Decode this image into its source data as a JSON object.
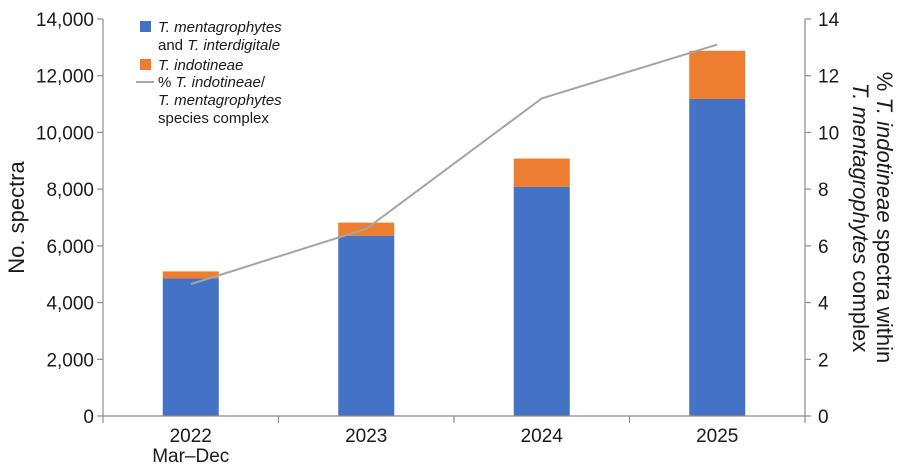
{
  "chart_data": {
    "type": "bar",
    "stacked": true,
    "categories": [
      "2022",
      "2023",
      "2024",
      "2025"
    ],
    "category_sublabels": [
      "Mar–Dec",
      "",
      "",
      ""
    ],
    "series": [
      {
        "name_parts": [
          {
            "text": "T. mentagrophytes",
            "italic": true
          },
          {
            "text": "and ",
            "italic": false
          },
          {
            "text": "T. interdigitale",
            "italic": true
          }
        ],
        "values": [
          4850,
          6350,
          8080,
          11180
        ],
        "color": "#4472c4",
        "axis": "left"
      },
      {
        "name_parts": [
          {
            "text": "T. indotineae",
            "italic": true
          }
        ],
        "values": [
          250,
          470,
          1000,
          1700
        ],
        "color": "#ed7d31",
        "axis": "left"
      },
      {
        "type": "line",
        "name_parts": [
          {
            "text": "% ",
            "italic": false
          },
          {
            "text": "T. indotineae",
            "italic": true
          },
          {
            "text": "/",
            "italic": false
          },
          {
            "text": "T. mentagrophytes",
            "italic": true
          },
          {
            "text": "species complex",
            "italic": false
          }
        ],
        "values": [
          4.65,
          6.6,
          11.2,
          13.1
        ],
        "color": "#a5a5a5",
        "axis": "right"
      }
    ],
    "y_left": {
      "label": "No. spectra",
      "ylim": [
        0,
        14000
      ],
      "ticks": [
        "0",
        "2,000",
        "4,000",
        "6,000",
        "8,000",
        "10,000",
        "12,000",
        "14,000"
      ]
    },
    "y_right": {
      "label_parts": [
        {
          "line": 1,
          "parts": [
            {
              "text": "% ",
              "italic": false
            },
            {
              "text": "T. indotineae",
              "italic": true
            },
            {
              "text": " spectra within",
              "italic": false
            }
          ]
        },
        {
          "line": 2,
          "parts": [
            {
              "text": "T. mentagrophytes",
              "italic": true
            },
            {
              "text": " complex",
              "italic": false
            }
          ]
        }
      ],
      "ylim": [
        0,
        14
      ],
      "ticks": [
        "0",
        "2",
        "4",
        "6",
        "8",
        "10",
        "12",
        "14"
      ]
    },
    "grid": false,
    "legend_position": "top-left"
  }
}
